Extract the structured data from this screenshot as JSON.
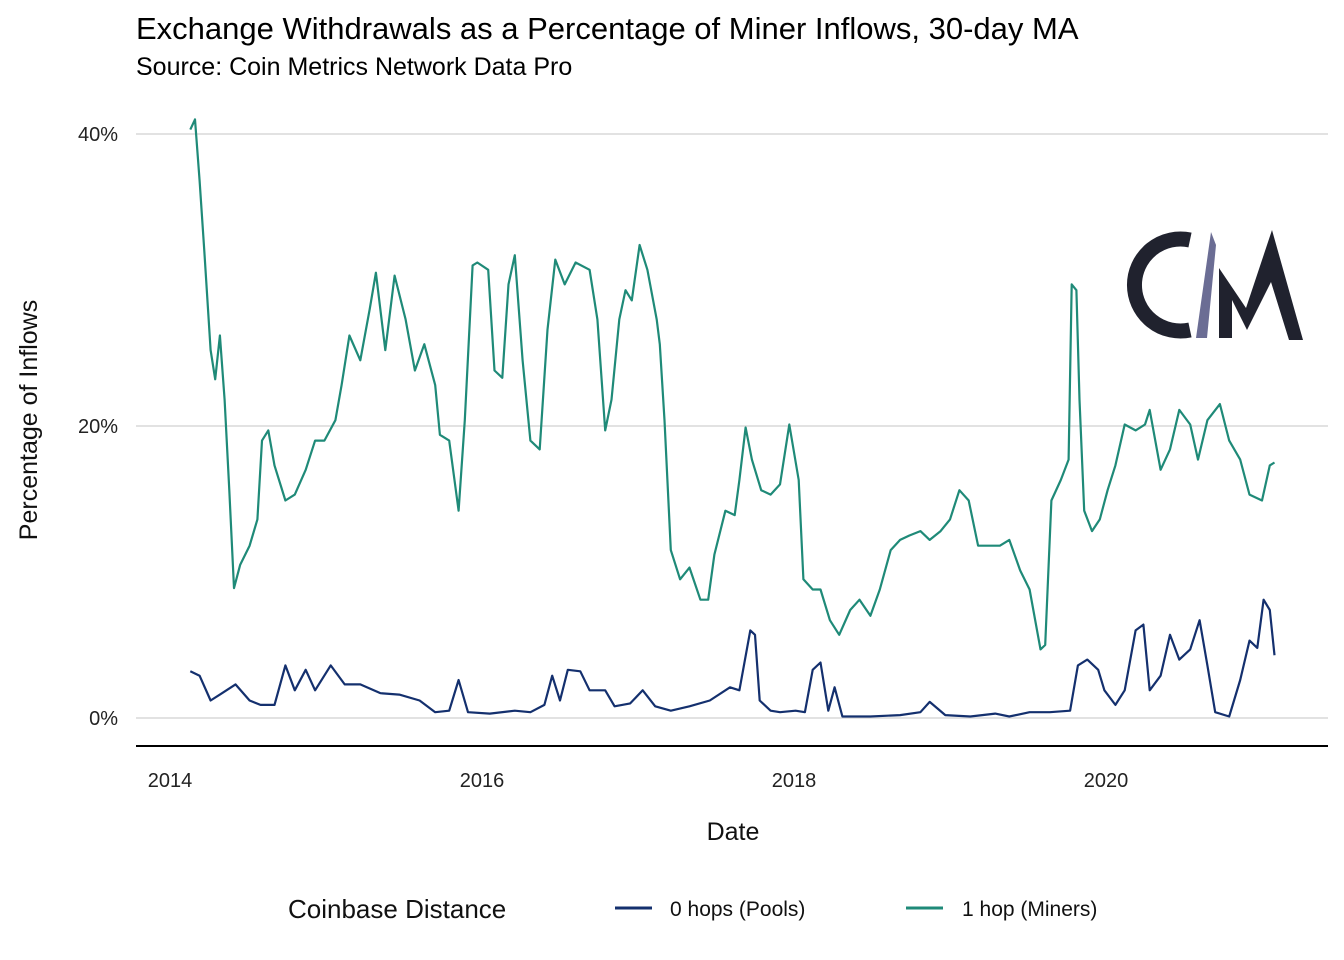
{
  "chart_data": {
    "type": "line",
    "title": "Exchange Withdrawals as a Percentage of Miner Inflows, 30-day MA",
    "subtitle": "Source: Coin Metrics Network Data Pro",
    "xlabel": "Date",
    "ylabel": "Percentage of Inflows",
    "xlim": [
      2014,
      2021.3
    ],
    "ylim": [
      0,
      40
    ],
    "x_ticks": [
      {
        "value": 2014,
        "label": "2014"
      },
      {
        "value": 2016,
        "label": "2016"
      },
      {
        "value": 2018,
        "label": "2018"
      },
      {
        "value": 2020,
        "label": "2020"
      }
    ],
    "y_ticks": [
      {
        "value": 0,
        "label": "0%"
      },
      {
        "value": 20,
        "label": "20%"
      },
      {
        "value": 40,
        "label": "40%"
      }
    ],
    "grid": "horizontal",
    "legend": {
      "title": "Coinbase Distance",
      "placement": "bottom"
    },
    "logo_text": "CM",
    "series": [
      {
        "name": "0 hops (Pools)",
        "color": "#14306e",
        "points": [
          [
            2014.13,
            3.2
          ],
          [
            2014.19,
            2.9
          ],
          [
            2014.26,
            1.2
          ],
          [
            2014.32,
            1.6
          ],
          [
            2014.42,
            2.3
          ],
          [
            2014.51,
            1.2
          ],
          [
            2014.58,
            0.9
          ],
          [
            2014.67,
            0.9
          ],
          [
            2014.74,
            3.6
          ],
          [
            2014.8,
            1.9
          ],
          [
            2014.87,
            3.3
          ],
          [
            2014.93,
            1.9
          ],
          [
            2015.03,
            3.6
          ],
          [
            2015.12,
            2.3
          ],
          [
            2015.22,
            2.3
          ],
          [
            2015.35,
            1.7
          ],
          [
            2015.47,
            1.6
          ],
          [
            2015.6,
            1.2
          ],
          [
            2015.7,
            0.4
          ],
          [
            2015.79,
            0.5
          ],
          [
            2015.85,
            2.6
          ],
          [
            2015.91,
            0.4
          ],
          [
            2016.05,
            0.3
          ],
          [
            2016.21,
            0.5
          ],
          [
            2016.31,
            0.4
          ],
          [
            2016.4,
            0.9
          ],
          [
            2016.45,
            2.9
          ],
          [
            2016.5,
            1.2
          ],
          [
            2016.55,
            3.3
          ],
          [
            2016.63,
            3.2
          ],
          [
            2016.69,
            1.9
          ],
          [
            2016.79,
            1.9
          ],
          [
            2016.85,
            0.8
          ],
          [
            2016.95,
            1.0
          ],
          [
            2017.03,
            1.9
          ],
          [
            2017.11,
            0.8
          ],
          [
            2017.21,
            0.5
          ],
          [
            2017.33,
            0.8
          ],
          [
            2017.46,
            1.2
          ],
          [
            2017.59,
            2.1
          ],
          [
            2017.65,
            1.9
          ],
          [
            2017.72,
            6.0
          ],
          [
            2017.75,
            5.7
          ],
          [
            2017.78,
            1.2
          ],
          [
            2017.85,
            0.5
          ],
          [
            2017.91,
            0.4
          ],
          [
            2018.01,
            0.5
          ],
          [
            2018.07,
            0.4
          ],
          [
            2018.12,
            3.3
          ],
          [
            2018.17,
            3.8
          ],
          [
            2018.22,
            0.5
          ],
          [
            2018.26,
            2.1
          ],
          [
            2018.31,
            0.1
          ],
          [
            2018.49,
            0.1
          ],
          [
            2018.68,
            0.2
          ],
          [
            2018.81,
            0.4
          ],
          [
            2018.87,
            1.1
          ],
          [
            2018.97,
            0.2
          ],
          [
            2019.13,
            0.1
          ],
          [
            2019.29,
            0.3
          ],
          [
            2019.38,
            0.1
          ],
          [
            2019.51,
            0.4
          ],
          [
            2019.64,
            0.4
          ],
          [
            2019.77,
            0.5
          ],
          [
            2019.82,
            3.6
          ],
          [
            2019.88,
            4.0
          ],
          [
            2019.95,
            3.3
          ],
          [
            2019.99,
            1.9
          ],
          [
            2020.06,
            0.9
          ],
          [
            2020.12,
            1.9
          ],
          [
            2020.19,
            6.0
          ],
          [
            2020.24,
            6.4
          ],
          [
            2020.28,
            1.9
          ],
          [
            2020.35,
            2.9
          ],
          [
            2020.41,
            5.7
          ],
          [
            2020.47,
            4.0
          ],
          [
            2020.54,
            4.7
          ],
          [
            2020.6,
            6.7
          ],
          [
            2020.65,
            3.6
          ],
          [
            2020.7,
            0.4
          ],
          [
            2020.79,
            0.1
          ],
          [
            2020.86,
            2.6
          ],
          [
            2020.92,
            5.3
          ],
          [
            2020.97,
            4.8
          ],
          [
            2021.01,
            8.1
          ],
          [
            2021.05,
            7.4
          ],
          [
            2021.08,
            4.3
          ]
        ]
      },
      {
        "name": "1 hop (Miners)",
        "color": "#1f8a78",
        "points": [
          [
            2014.13,
            40.3
          ],
          [
            2014.16,
            41
          ],
          [
            2014.19,
            36.8
          ],
          [
            2014.22,
            32
          ],
          [
            2014.26,
            25.2
          ],
          [
            2014.29,
            23.2
          ],
          [
            2014.32,
            26.2
          ],
          [
            2014.35,
            21.8
          ],
          [
            2014.38,
            15.6
          ],
          [
            2014.41,
            8.9
          ],
          [
            2014.45,
            10.5
          ],
          [
            2014.51,
            11.8
          ],
          [
            2014.56,
            13.6
          ],
          [
            2014.59,
            19
          ],
          [
            2014.63,
            19.7
          ],
          [
            2014.67,
            17.3
          ],
          [
            2014.74,
            14.9
          ],
          [
            2014.8,
            15.3
          ],
          [
            2014.87,
            17
          ],
          [
            2014.93,
            19
          ],
          [
            2014.99,
            19
          ],
          [
            2015.06,
            20.4
          ],
          [
            2015.1,
            22.8
          ],
          [
            2015.15,
            26.2
          ],
          [
            2015.22,
            24.5
          ],
          [
            2015.28,
            28
          ],
          [
            2015.32,
            30.5
          ],
          [
            2015.38,
            25.2
          ],
          [
            2015.44,
            30.3
          ],
          [
            2015.51,
            27.3
          ],
          [
            2015.57,
            23.8
          ],
          [
            2015.63,
            25.6
          ],
          [
            2015.7,
            22.8
          ],
          [
            2015.73,
            19.4
          ],
          [
            2015.79,
            19
          ],
          [
            2015.85,
            14.2
          ],
          [
            2015.89,
            20.4
          ],
          [
            2015.94,
            31
          ],
          [
            2015.97,
            31.2
          ],
          [
            2016.04,
            30.7
          ],
          [
            2016.08,
            23.8
          ],
          [
            2016.13,
            23.3
          ],
          [
            2016.17,
            29.7
          ],
          [
            2016.21,
            31.7
          ],
          [
            2016.26,
            24.5
          ],
          [
            2016.31,
            19
          ],
          [
            2016.37,
            18.4
          ],
          [
            2016.42,
            26.6
          ],
          [
            2016.47,
            31.4
          ],
          [
            2016.53,
            29.7
          ],
          [
            2016.6,
            31.2
          ],
          [
            2016.69,
            30.7
          ],
          [
            2016.74,
            27.3
          ],
          [
            2016.79,
            19.7
          ],
          [
            2016.83,
            21.8
          ],
          [
            2016.88,
            27.3
          ],
          [
            2016.92,
            29.3
          ],
          [
            2016.96,
            28.6
          ],
          [
            2017.01,
            32.4
          ],
          [
            2017.06,
            30.7
          ],
          [
            2017.12,
            27.3
          ],
          [
            2017.14,
            25.6
          ],
          [
            2017.17,
            20.4
          ],
          [
            2017.21,
            11.5
          ],
          [
            2017.27,
            9.5
          ],
          [
            2017.33,
            10.3
          ],
          [
            2017.4,
            8.1
          ],
          [
            2017.45,
            8.1
          ],
          [
            2017.49,
            11.2
          ],
          [
            2017.56,
            14.2
          ],
          [
            2017.62,
            13.9
          ],
          [
            2017.65,
            16.3
          ],
          [
            2017.69,
            19.9
          ],
          [
            2017.73,
            17.7
          ],
          [
            2017.79,
            15.6
          ],
          [
            2017.85,
            15.3
          ],
          [
            2017.91,
            16
          ],
          [
            2017.97,
            20.1
          ],
          [
            2018.03,
            16.3
          ],
          [
            2018.06,
            9.5
          ],
          [
            2018.12,
            8.8
          ],
          [
            2018.17,
            8.8
          ],
          [
            2018.23,
            6.7
          ],
          [
            2018.29,
            5.7
          ],
          [
            2018.36,
            7.4
          ],
          [
            2018.42,
            8.1
          ],
          [
            2018.49,
            7
          ],
          [
            2018.55,
            8.8
          ],
          [
            2018.62,
            11.5
          ],
          [
            2018.68,
            12.2
          ],
          [
            2018.74,
            12.5
          ],
          [
            2018.81,
            12.8
          ],
          [
            2018.87,
            12.2
          ],
          [
            2018.94,
            12.8
          ],
          [
            2019.0,
            13.6
          ],
          [
            2019.06,
            15.6
          ],
          [
            2019.12,
            14.9
          ],
          [
            2019.18,
            11.8
          ],
          [
            2019.26,
            11.8
          ],
          [
            2019.32,
            11.8
          ],
          [
            2019.38,
            12.2
          ],
          [
            2019.45,
            10.1
          ],
          [
            2019.51,
            8.8
          ],
          [
            2019.58,
            4.7
          ],
          [
            2019.61,
            5
          ],
          [
            2019.65,
            14.9
          ],
          [
            2019.71,
            16.3
          ],
          [
            2019.76,
            17.7
          ],
          [
            2019.78,
            29.7
          ],
          [
            2019.81,
            29.3
          ],
          [
            2019.83,
            21.8
          ],
          [
            2019.86,
            14.2
          ],
          [
            2019.91,
            12.8
          ],
          [
            2019.96,
            13.6
          ],
          [
            2020.01,
            15.6
          ],
          [
            2020.06,
            17.3
          ],
          [
            2020.12,
            20.1
          ],
          [
            2020.19,
            19.7
          ],
          [
            2020.25,
            20.1
          ],
          [
            2020.28,
            21.1
          ],
          [
            2020.35,
            17
          ],
          [
            2020.41,
            18.4
          ],
          [
            2020.47,
            21.1
          ],
          [
            2020.54,
            20.1
          ],
          [
            2020.59,
            17.7
          ],
          [
            2020.65,
            20.4
          ],
          [
            2020.73,
            21.5
          ],
          [
            2020.79,
            19
          ],
          [
            2020.86,
            17.7
          ],
          [
            2020.92,
            15.3
          ],
          [
            2021.0,
            14.9
          ],
          [
            2021.05,
            17.3
          ],
          [
            2021.08,
            17.5
          ]
        ]
      }
    ]
  }
}
